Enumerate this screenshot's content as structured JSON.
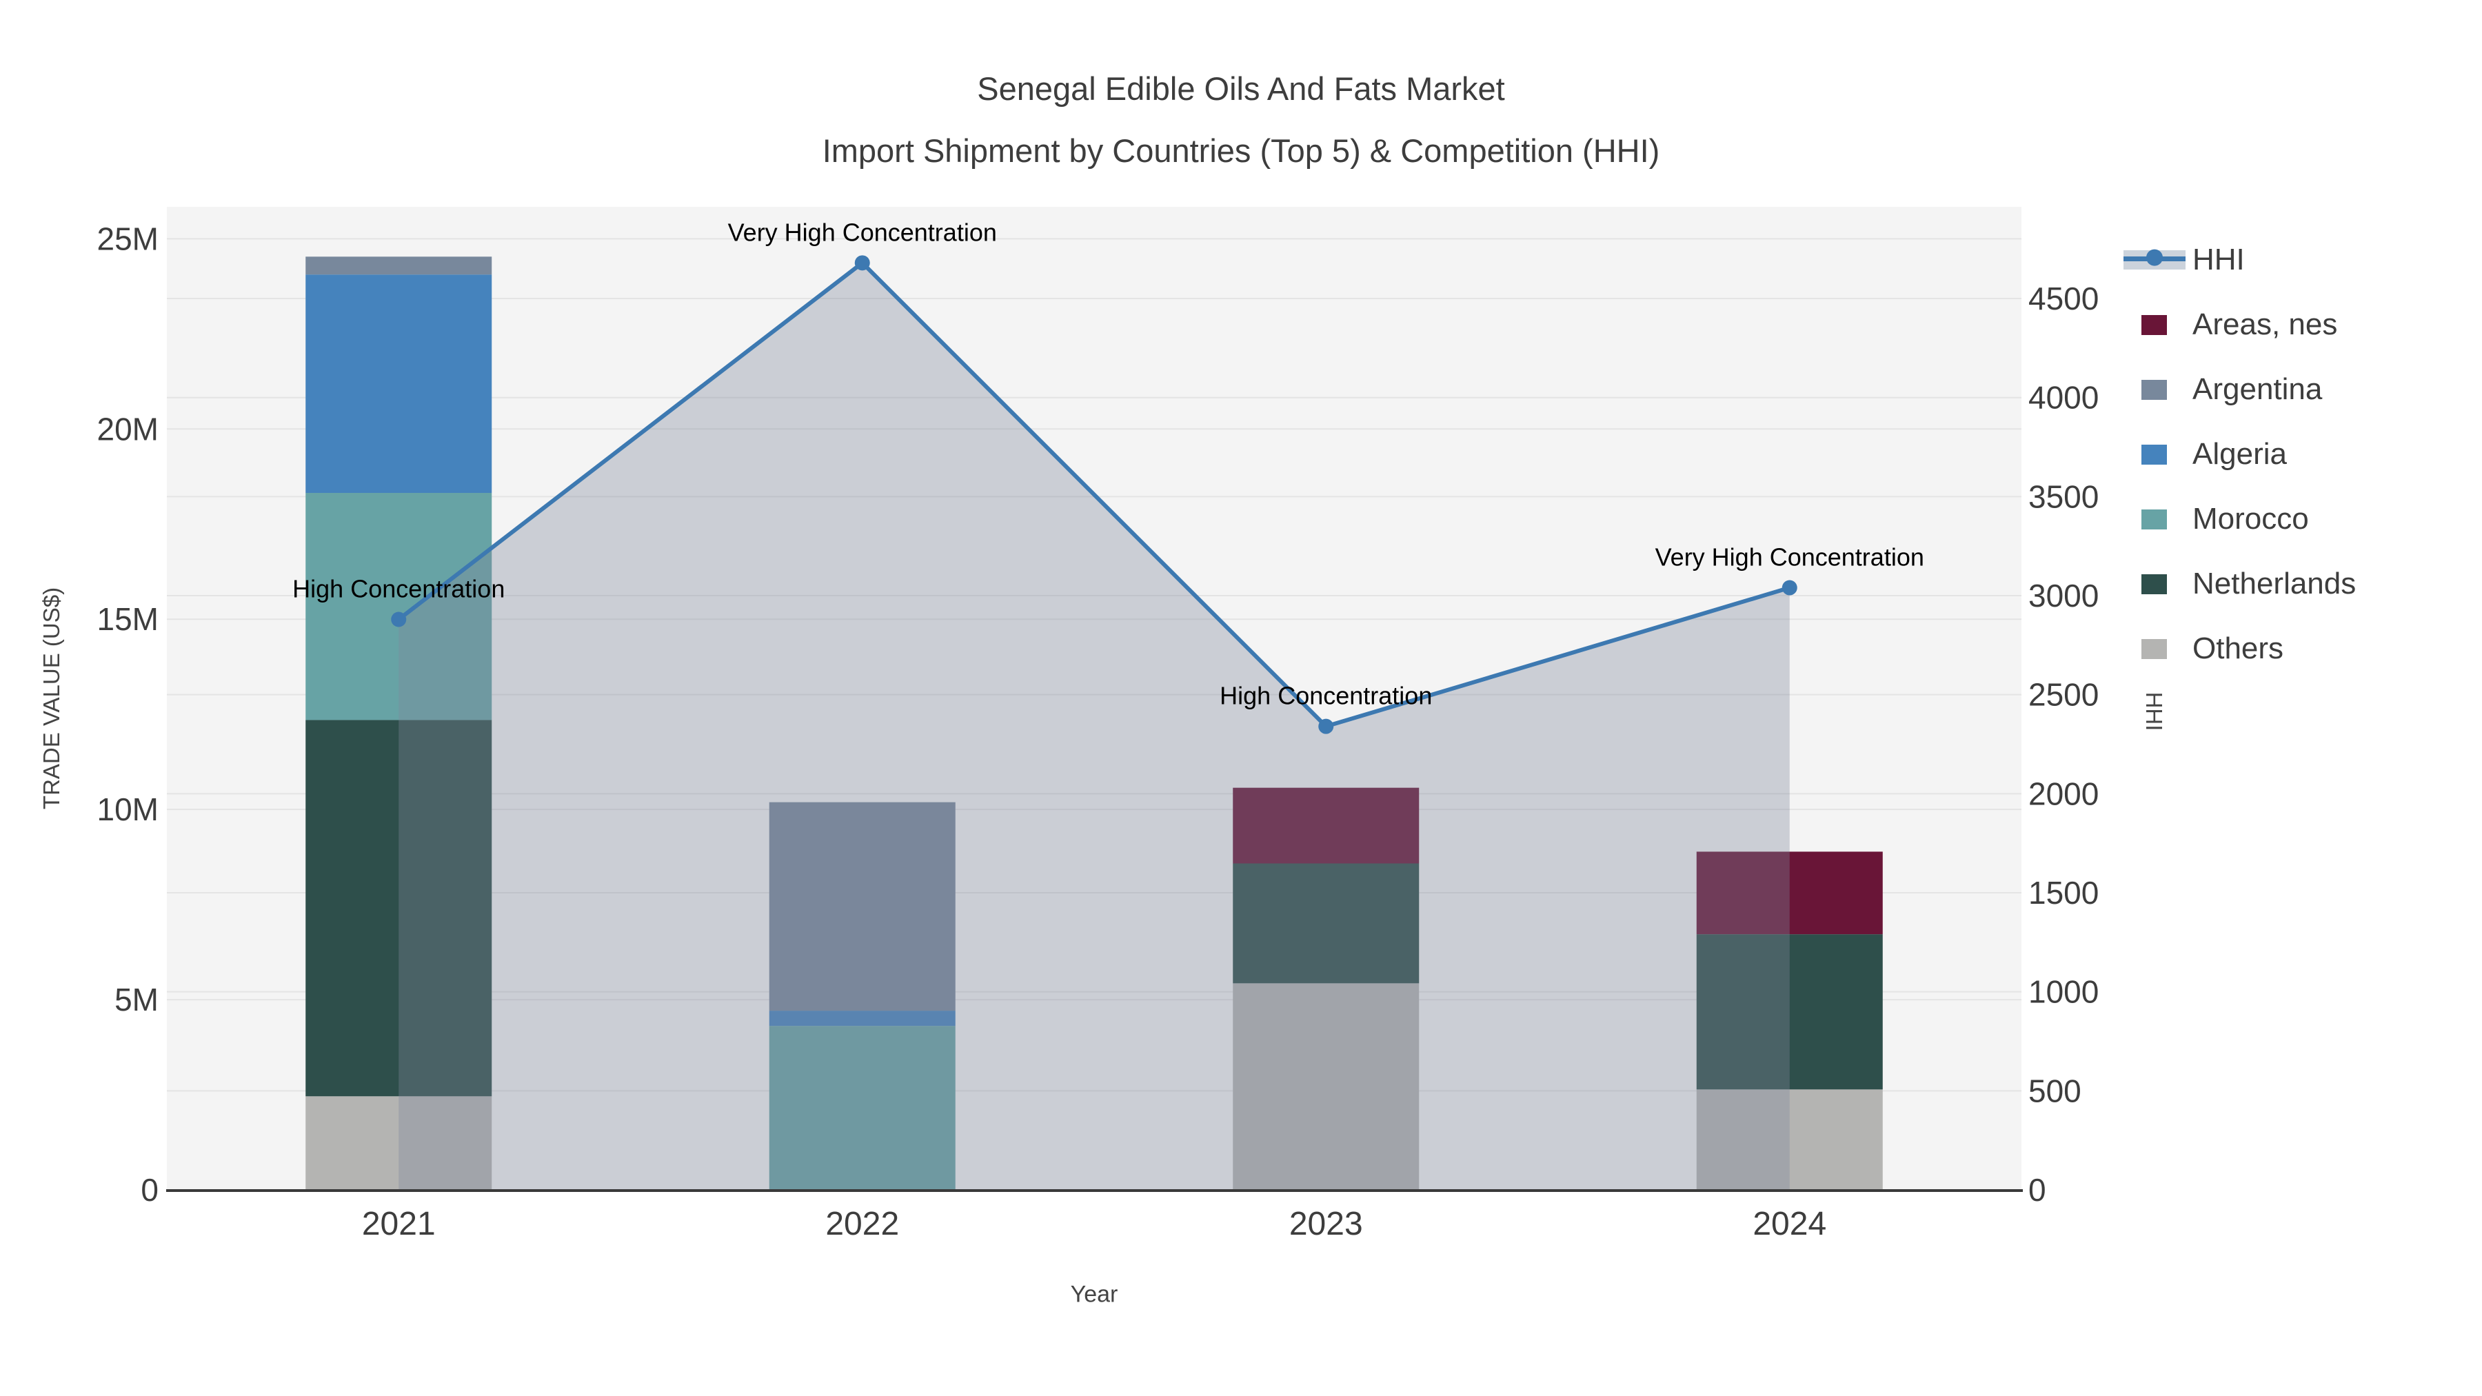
{
  "chart_data": {
    "type": "combo: stacked bar (trade value) + line-area (HHI) on dual y-axes",
    "title": "Senegal Edible Oils And Fats Market",
    "subtitle": "Import Shipment by Countries (Top 5) & Competition (HHI)",
    "xlabel": "Year",
    "ylabel_left": "TRADE VALUE (US$)",
    "ylabel_right": "HHI",
    "categories": [
      "2021",
      "2022",
      "2023",
      "2024"
    ],
    "bar_series": [
      {
        "name": "Others",
        "color": "#b4b4b2",
        "values": [
          2460000,
          0,
          5430000,
          2640000
        ]
      },
      {
        "name": "Netherlands",
        "color": "#2e4f4b",
        "values": [
          9890000,
          0,
          3150000,
          4080000
        ]
      },
      {
        "name": "Morocco",
        "color": "#67a3a5",
        "values": [
          5970000,
          4310000,
          0,
          0
        ]
      },
      {
        "name": "Algeria",
        "color": "#4583bd",
        "values": [
          5740000,
          400000,
          0,
          0
        ]
      },
      {
        "name": "Argentina",
        "color": "#78889c",
        "values": [
          470000,
          5480000,
          0,
          0
        ]
      },
      {
        "name": "Areas, nes",
        "color": "#691537",
        "values": [
          0,
          0,
          1990000,
          2170000
        ]
      }
    ],
    "line_series": {
      "name": "HHI",
      "color": "#3d79b1",
      "area_fill": "rgba(126,136,156,0.35)",
      "values": [
        2880,
        4680,
        2340,
        3040
      ]
    },
    "annotations": [
      {
        "category": "2021",
        "text": "High Concentration"
      },
      {
        "category": "2022",
        "text": "Very High Concentration"
      },
      {
        "category": "2023",
        "text": "High Concentration"
      },
      {
        "category": "2024",
        "text": "Very High Concentration"
      }
    ],
    "y_left": {
      "tick_labels": [
        "0",
        "5M",
        "10M",
        "15M",
        "20M",
        "25M"
      ],
      "tick_values": [
        0,
        5000000,
        10000000,
        15000000,
        20000000,
        25000000
      ],
      "max": 25840000
    },
    "y_right": {
      "tick_labels": [
        "0",
        "500",
        "1000",
        "1500",
        "2000",
        "2500",
        "3000",
        "3500",
        "4000",
        "4500"
      ],
      "tick_values": [
        0,
        500,
        1000,
        1500,
        2000,
        2500,
        3000,
        3500,
        4000,
        4500
      ],
      "max": 4963
    },
    "legend": [
      {
        "label": "HHI",
        "type": "line-area"
      },
      {
        "label": "Areas, nes",
        "type": "box",
        "color": "#691537"
      },
      {
        "label": "Argentina",
        "type": "box",
        "color": "#78889c"
      },
      {
        "label": "Algeria",
        "type": "box",
        "color": "#4583bd"
      },
      {
        "label": "Morocco",
        "type": "box",
        "color": "#67a3a5"
      },
      {
        "label": "Netherlands",
        "type": "box",
        "color": "#2e4f4b"
      },
      {
        "label": "Others",
        "type": "box",
        "color": "#b4b4b2"
      }
    ],
    "grid": true,
    "legend_position": "right",
    "plot_bg": "#f4f4f4",
    "grid_color": "#e4e4e4",
    "axis_line_color": "#3a3a3a",
    "text_color": "#3d3d3d",
    "annotation_color": "#000000"
  }
}
